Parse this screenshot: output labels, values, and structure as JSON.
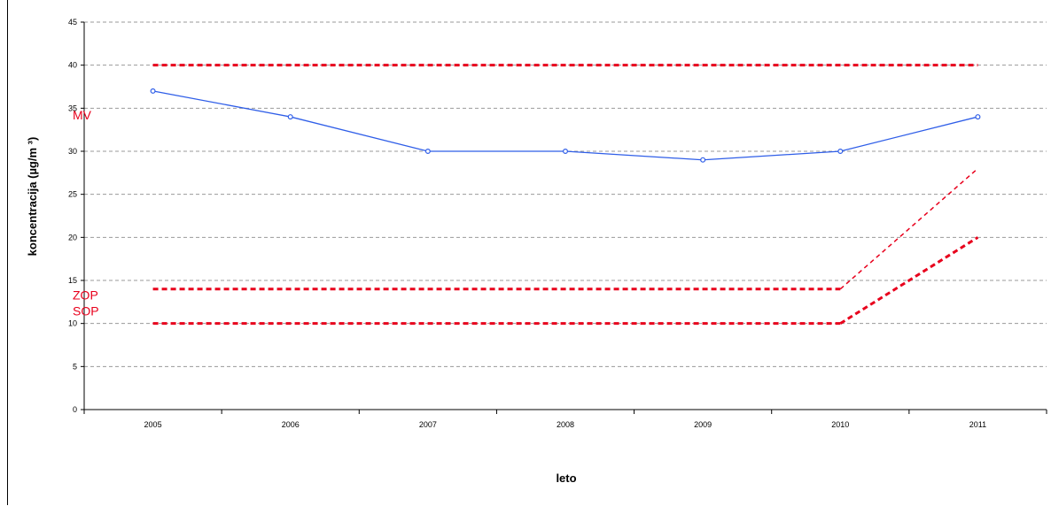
{
  "chart_data": {
    "type": "line",
    "title": "",
    "xlabel": "leto",
    "ylabel": "koncentracija (µg/m ³)",
    "x": [
      "2005",
      "2006",
      "2007",
      "2008",
      "2009",
      "2010",
      "2011"
    ],
    "ylim": [
      0,
      45
    ],
    "yticks": [
      0,
      5,
      10,
      15,
      20,
      25,
      30,
      35,
      40,
      45
    ],
    "grid": true,
    "series": [
      {
        "name": "",
        "values": [
          37,
          34,
          30,
          30,
          29,
          30,
          34
        ],
        "color": "#2f5ee8",
        "marker": "circle-open"
      }
    ],
    "reference_lines": [
      {
        "label": "MV",
        "values": [
          40,
          40,
          40,
          40,
          40,
          40,
          40
        ],
        "color": "#e8001c",
        "style": "dotted-thick"
      },
      {
        "label": "ZOP",
        "values": [
          14,
          14,
          14,
          14,
          14,
          14,
          28
        ],
        "color": "#e8001c",
        "style": "dotted-thick"
      },
      {
        "label": "SOP",
        "values": [
          10,
          10,
          10,
          10,
          10,
          10,
          20
        ],
        "color": "#e8001c",
        "style": "dotted-thick"
      }
    ]
  }
}
